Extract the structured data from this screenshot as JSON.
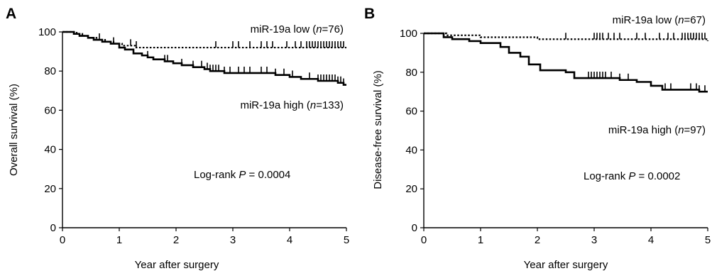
{
  "chart_data": [
    {
      "panel_letter": "A",
      "type": "line",
      "xlabel": "Year after surgery",
      "ylabel": "Overall survival (%)",
      "xlim": [
        0,
        5
      ],
      "ylim": [
        0,
        100
      ],
      "xticks": [
        0,
        1,
        2,
        3,
        4,
        5
      ],
      "yticks": [
        0,
        20,
        40,
        60,
        80,
        100
      ],
      "grid": false,
      "series": [
        {
          "key": "low",
          "style": "dotted",
          "label_parts": [
            "miR-19a low (",
            "n",
            "=76)"
          ],
          "x": [
            0,
            0.25,
            0.35,
            0.45,
            0.6,
            0.75,
            0.9,
            1.05,
            1.3,
            5.0
          ],
          "y": [
            100,
            99,
            98,
            97,
            96,
            95,
            94,
            93,
            92,
            92
          ],
          "censor_x": [
            0.65,
            0.9,
            1.2,
            1.3,
            2.7,
            3.0,
            3.1,
            3.3,
            3.5,
            3.6,
            3.7,
            3.95,
            4.1,
            4.2,
            4.3,
            4.35,
            4.4,
            4.45,
            4.5,
            4.55,
            4.6,
            4.65,
            4.7,
            4.75,
            4.8,
            4.85,
            4.9,
            4.95
          ]
        },
        {
          "key": "high",
          "style": "solid",
          "label_parts": [
            "miR-19a high (",
            "n",
            "=133)"
          ],
          "x": [
            0,
            0.2,
            0.3,
            0.45,
            0.55,
            0.7,
            0.85,
            1.0,
            1.1,
            1.25,
            1.4,
            1.5,
            1.6,
            1.8,
            1.95,
            2.1,
            2.3,
            2.5,
            2.6,
            2.85,
            3.5,
            3.75,
            4.0,
            4.2,
            4.5,
            4.85,
            4.95,
            5.0
          ],
          "y": [
            100,
            99,
            98,
            97,
            96,
            95,
            94,
            92,
            91,
            89,
            88,
            87,
            86,
            85,
            84,
            83,
            82,
            81,
            80,
            79,
            79,
            78,
            77,
            76,
            75,
            74,
            73,
            73
          ],
          "censor_x": [
            1.5,
            1.8,
            1.85,
            2.1,
            2.3,
            2.45,
            2.55,
            2.6,
            2.65,
            2.7,
            2.75,
            2.85,
            2.95,
            3.1,
            3.2,
            3.3,
            3.5,
            3.6,
            3.75,
            3.9,
            4.05,
            4.35,
            4.5,
            4.55,
            4.6,
            4.65,
            4.7,
            4.75,
            4.8,
            4.85,
            4.9,
            4.95
          ]
        }
      ],
      "annotation_parts": [
        "Log-rank ",
        "P",
        " = 0.0004"
      ],
      "colors": {
        "line": "#000000",
        "background": "#ffffff"
      }
    },
    {
      "panel_letter": "B",
      "type": "line",
      "xlabel": "Year after surgery",
      "ylabel": "Disease-free survival (%)",
      "xlim": [
        0,
        5
      ],
      "ylim": [
        0,
        100
      ],
      "xticks": [
        0,
        1,
        2,
        3,
        4,
        5
      ],
      "yticks": [
        0,
        20,
        40,
        60,
        80,
        100
      ],
      "grid": false,
      "series": [
        {
          "key": "low",
          "style": "dotted",
          "label_parts": [
            "miR-19a low (",
            "n",
            "=67)"
          ],
          "x": [
            0,
            0.4,
            0.6,
            1.0,
            1.6,
            2.0,
            3.5,
            4.5,
            5.0
          ],
          "y": [
            100,
            99,
            99,
            98,
            98,
            97,
            97,
            97,
            96
          ],
          "censor_x": [
            2.5,
            3.0,
            3.05,
            3.1,
            3.15,
            3.25,
            3.35,
            3.45,
            3.75,
            3.9,
            4.15,
            4.3,
            4.4,
            4.55,
            4.6,
            4.65,
            4.7,
            4.75,
            4.8,
            4.85,
            4.9,
            4.95
          ]
        },
        {
          "key": "high",
          "style": "solid",
          "label_parts": [
            "miR-19a high (",
            "n",
            "=97)"
          ],
          "x": [
            0,
            0.35,
            0.5,
            0.8,
            1.0,
            1.35,
            1.5,
            1.7,
            1.85,
            2.05,
            2.5,
            2.65,
            3.45,
            3.75,
            4.0,
            4.2,
            4.35,
            4.5,
            4.85,
            5.0
          ],
          "y": [
            100,
            98,
            97,
            96,
            95,
            93,
            90,
            88,
            84,
            81,
            80,
            77,
            76,
            75,
            73,
            71,
            71,
            71,
            70,
            70
          ],
          "censor_x": [
            2.65,
            2.9,
            2.95,
            3.0,
            3.05,
            3.1,
            3.15,
            3.2,
            3.3,
            3.45,
            3.6,
            4.25,
            4.35,
            4.7,
            4.8,
            4.85,
            4.95
          ]
        }
      ],
      "annotation_parts": [
        "Log-rank ",
        "P",
        " = 0.0002"
      ],
      "colors": {
        "line": "#000000",
        "background": "#ffffff"
      }
    }
  ]
}
